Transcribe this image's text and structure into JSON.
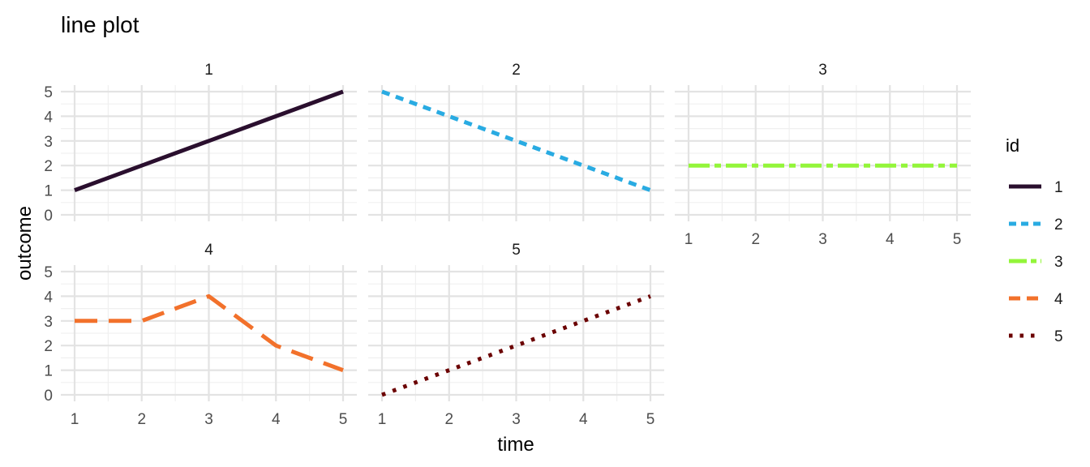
{
  "chart_data": {
    "type": "line",
    "title": "line plot",
    "xlabel": "time",
    "ylabel": "outcome",
    "xlim": [
      1,
      5
    ],
    "ylim": [
      0,
      5
    ],
    "x_ticks": [
      1,
      2,
      3,
      4,
      5
    ],
    "y_ticks": [
      0,
      1,
      2,
      3,
      4,
      5
    ],
    "grid": true,
    "legend": {
      "title": "id",
      "position": "right"
    },
    "series": [
      {
        "name": "1",
        "color": "#2a0f2e",
        "linetype": "solid",
        "x": [
          1,
          2,
          3,
          4,
          5
        ],
        "y": [
          1,
          2,
          3,
          4,
          5
        ]
      },
      {
        "name": "2",
        "color": "#29abe2",
        "linetype": "dashed",
        "x": [
          1,
          2,
          3,
          4,
          5
        ],
        "y": [
          5,
          4,
          3,
          2,
          1
        ]
      },
      {
        "name": "3",
        "color": "#93f53a",
        "linetype": "dotdash",
        "x": [
          1,
          2,
          3,
          4,
          5
        ],
        "y": [
          2,
          2,
          2,
          2,
          2
        ]
      },
      {
        "name": "4",
        "color": "#f2712b",
        "linetype": "longdash",
        "x": [
          1,
          2,
          3,
          4,
          5
        ],
        "y": [
          3,
          3,
          4,
          2,
          1
        ]
      },
      {
        "name": "5",
        "color": "#6b0000",
        "linetype": "dotted",
        "x": [
          1,
          2,
          3,
          4,
          5
        ],
        "y": [
          0,
          1,
          2,
          3,
          4
        ]
      }
    ]
  }
}
